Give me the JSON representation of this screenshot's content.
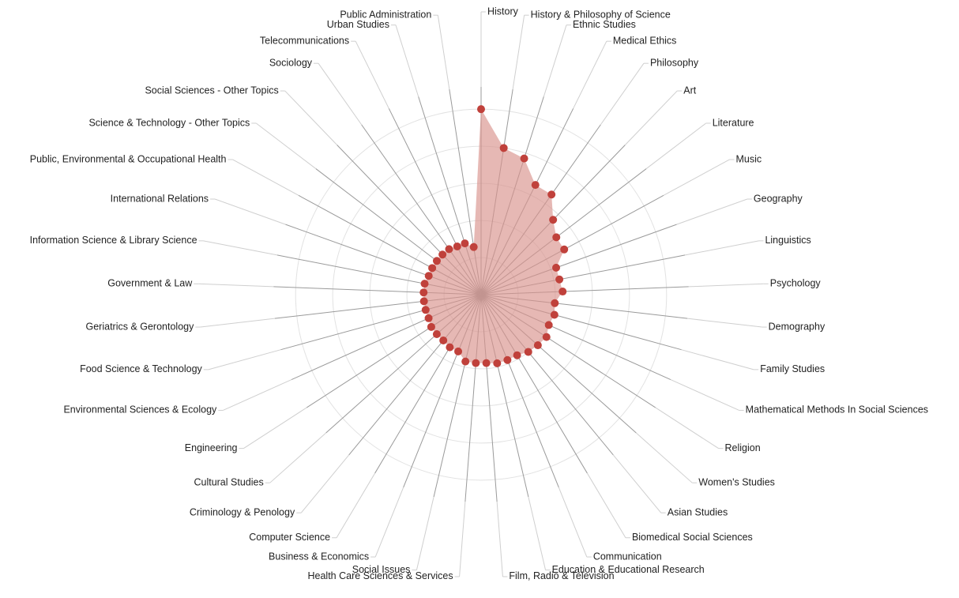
{
  "chart_data": {
    "type": "radar",
    "categories": [
      "History",
      "History & Philosophy of Science",
      "Ethnic Studies",
      "Medical Ethics",
      "Philosophy",
      "Art",
      "Literature",
      "Music",
      "Geography",
      "Linguistics",
      "Psychology",
      "Demography",
      "Family Studies",
      "Mathematical Methods In Social Sciences",
      "Religion",
      "Women's Studies",
      "Asian Studies",
      "Biomedical Social Sciences",
      "Communication",
      "Education & Educational Research",
      "Film, Radio & Television",
      "Health Care Sciences & Services",
      "Social Issues",
      "Business & Economics",
      "Computer Science",
      "Criminology & Penology",
      "Cultural Studies",
      "Engineering",
      "Environmental Sciences & Ecology",
      "Food Science & Technology",
      "Geriatrics & Gerontology",
      "Government & Law",
      "Information Science & Library Science",
      "International Relations",
      "Public, Environmental & Occupational Health",
      "Science & Technology - Other Topics",
      "Social Sciences - Other Topics",
      "Sociology",
      "Telecommunications",
      "Urban Studies",
      "Public Administration"
    ],
    "values": [
      5.0,
      4.0,
      3.85,
      3.3,
      3.3,
      2.8,
      2.55,
      2.55,
      2.15,
      2.15,
      2.2,
      2.0,
      2.05,
      2.0,
      2.1,
      2.05,
      2.0,
      1.9,
      1.9,
      1.9,
      1.85,
      1.85,
      1.85,
      1.65,
      1.65,
      1.6,
      1.6,
      1.6,
      1.55,
      1.55,
      1.55,
      1.55,
      1.55,
      1.5,
      1.5,
      1.5,
      1.5,
      1.5,
      1.45,
      1.45,
      1.3
    ],
    "color": "#c0413b",
    "fill": "#d9928c",
    "rlim": [
      0,
      5.6
    ],
    "rticks": [
      1,
      2,
      3,
      4,
      5
    ],
    "grid": true
  }
}
